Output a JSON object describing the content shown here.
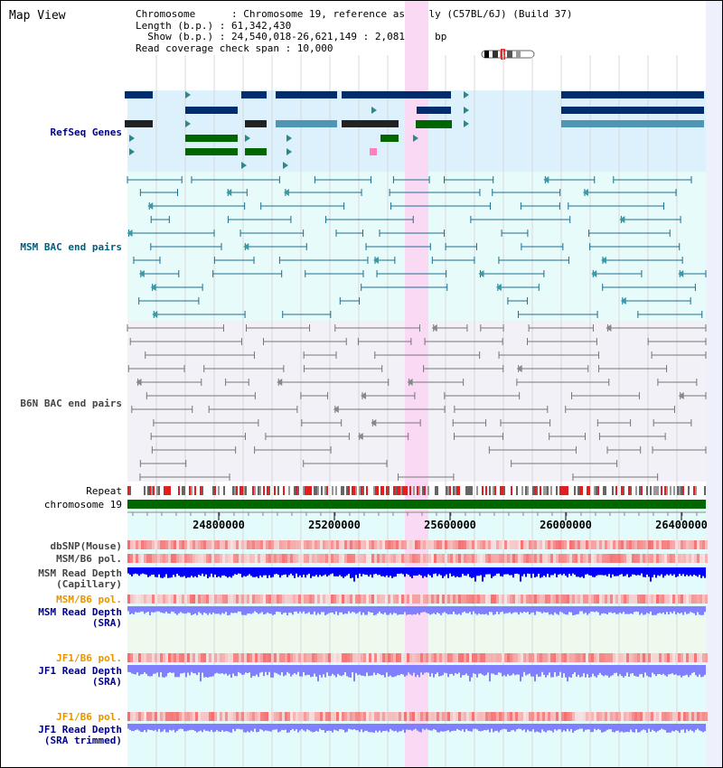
{
  "view_title": "Map View",
  "header": {
    "chromosome_line": "Chromosome      : Chromosome 19, reference assembly (C57BL/6J) (Build 37)",
    "length_line": "Length (b.p.) : 61,342,430",
    "show_line": "  Show (b.p.) : 24,540,018-26,621,149 : 2,081,132 bp",
    "coverage_line": "Read coverage check span : 10,000"
  },
  "track_labels": {
    "refseq": "RefSeq Genes",
    "msm_bac": "MSM BAC end pairs",
    "b6n_bac": "B6N BAC end pairs",
    "repeat": "Repeat",
    "chromosome": "chromosome 19",
    "dbsnp": "dbSNP(Mouse)",
    "msm_b6_pol_1": "MSM/B6 pol.",
    "msm_read_depth_cap_1": "MSM Read Depth",
    "msm_read_depth_cap_2": "(Capillary)",
    "msm_b6_pol_2": "MSM/B6 pol.",
    "msm_read_depth_sra_1": "MSM Read Depth",
    "msm_read_depth_sra_2": "(SRA)",
    "jf1_b6_pol_1": "JF1/B6 pol.",
    "jf1_read_depth_sra_1": "JF1 Read Depth",
    "jf1_read_depth_sra_2": "(SRA)",
    "jf1_b6_pol_2": "JF1/B6 pol.",
    "jf1_read_depth_trim_1": "JF1 Read Depth",
    "jf1_read_depth_trim_2": "(SRA trimmed)"
  },
  "axis_ticks": [
    "24800000",
    "25200000",
    "25600000",
    "26000000",
    "26400000"
  ],
  "colors": {
    "refseq_bg": "#dcf1fb",
    "msm_bac_bg": "#e8fbfb",
    "b6n_bac_bg": "#f1f1f7",
    "highlight": "#fad9f4",
    "gene_dark": "#002d6e",
    "gene_teal": "#4e96b4",
    "gene_green": "#006600",
    "msm_bac": "#1a6f90",
    "b6n_bac": "#777777",
    "chromosome": "#006600",
    "label_blue": "#00008b",
    "label_teal": "#005f7f",
    "label_gray": "#444444",
    "label_orange": "#e69500",
    "depth_blue": "#0000ff",
    "depth_light": "#7f7fff"
  },
  "scale": {
    "start": 24540018,
    "end": 26621149
  }
}
